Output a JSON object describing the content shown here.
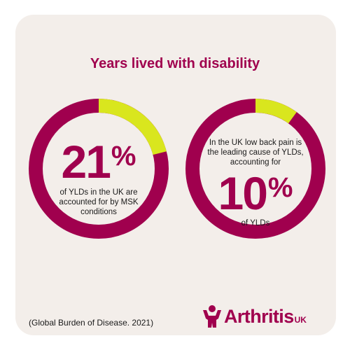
{
  "title": "Years lived with disability",
  "colors": {
    "accent": "#a0004e",
    "highlight": "#d9e61e",
    "background": "#f3eeea"
  },
  "stats": [
    {
      "value": "21",
      "unit": "%",
      "text_before": "",
      "text_after": "of YLDs in the UK are accounted for by MSK conditions"
    },
    {
      "value": "10",
      "unit": "%",
      "text_before": "In the UK low back pain is the leading cause of YLDs, accounting for",
      "text_after": "of YLDs"
    }
  ],
  "chart_data": [
    {
      "type": "pie",
      "values": [
        21,
        79
      ],
      "highlight_value": 21
    },
    {
      "type": "pie",
      "values": [
        10,
        90
      ],
      "highlight_value": 10
    }
  ],
  "source": "(Global Burden of Disease. 2021)",
  "logo": {
    "icon": "arthritis-uk-figure-icon",
    "name": "Arthritis",
    "suffix": "UK"
  }
}
